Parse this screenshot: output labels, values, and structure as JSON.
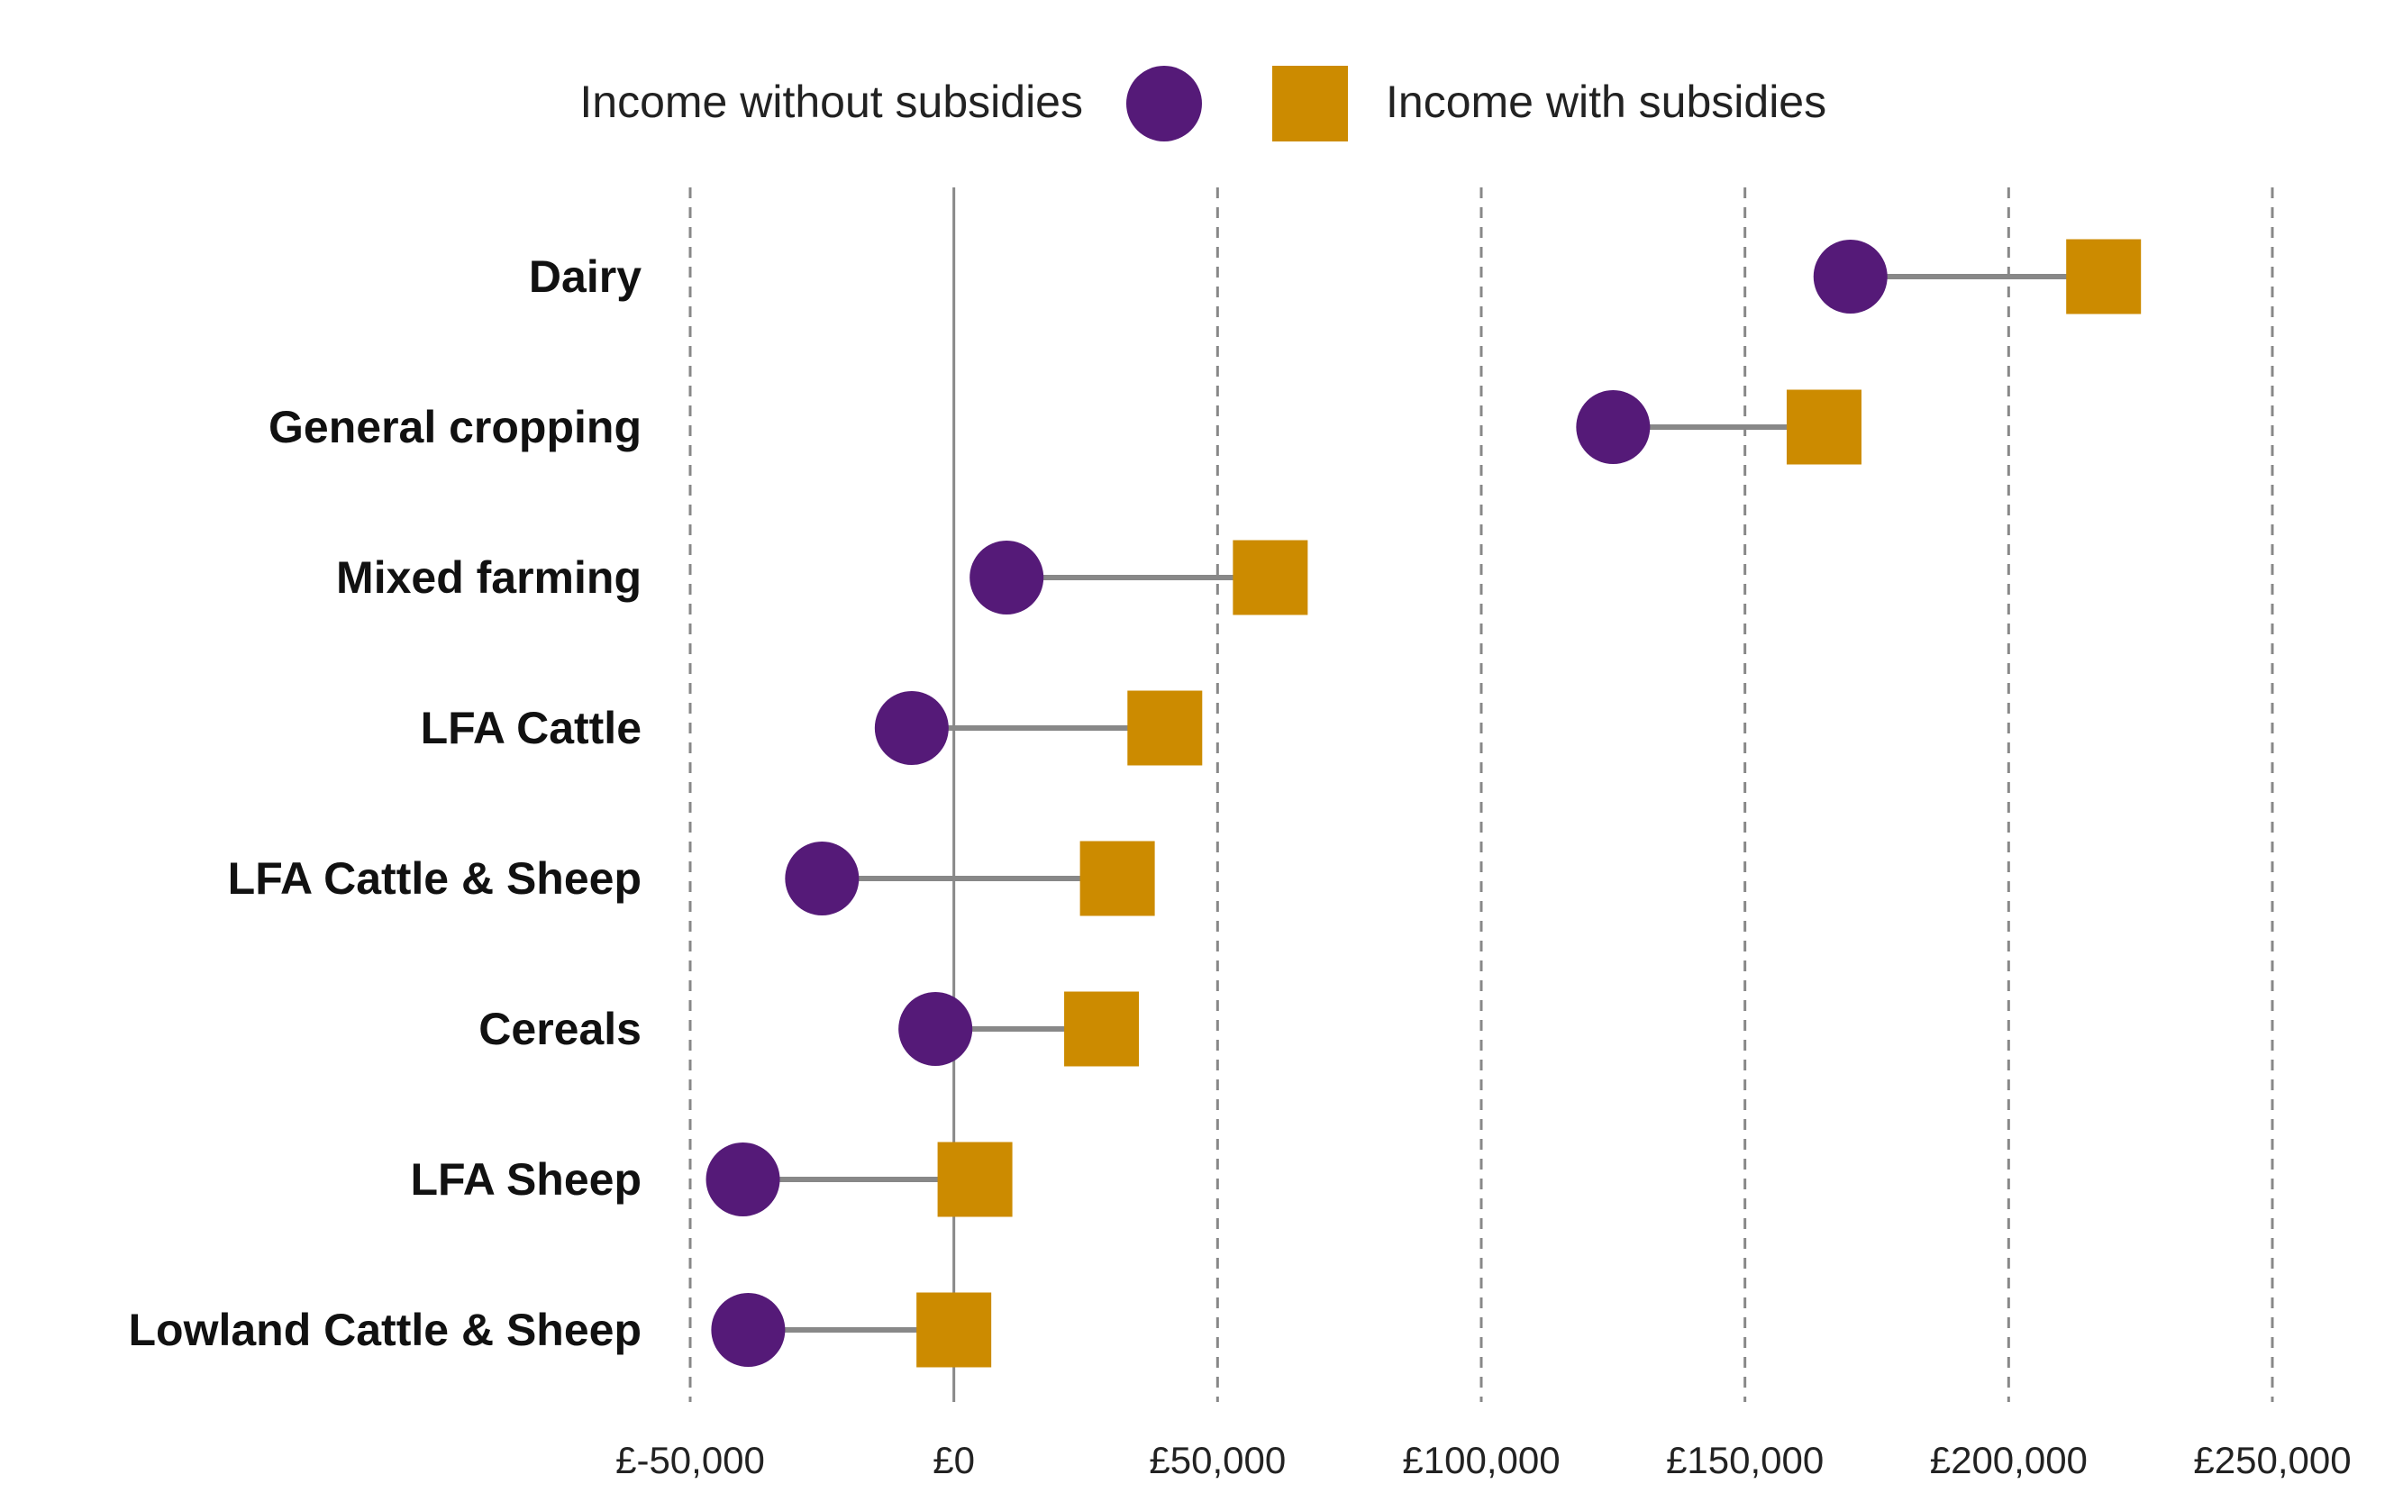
{
  "chart_data": {
    "type": "dumbbell",
    "legend": {
      "position": "top",
      "items": [
        {
          "key": "without",
          "label": "Income without subsidies",
          "marker": "circle",
          "color": "#551A78"
        },
        {
          "key": "with",
          "label": "Income with subsidies",
          "marker": "square",
          "color": "#CC8B00"
        }
      ]
    },
    "x_axis": {
      "min": -50000,
      "max": 250000,
      "ticks": [
        -50000,
        0,
        50000,
        100000,
        150000,
        200000,
        250000
      ],
      "tick_labels": [
        "£-50,000",
        "£0",
        "£50,000",
        "£100,000",
        "£150,000",
        "£200,000",
        "£250,000"
      ],
      "grid": "dashed"
    },
    "categories": [
      "Dairy",
      "General cropping",
      "Mixed farming",
      "LFA Cattle",
      "LFA Cattle & Sheep",
      "Cereals",
      "LFA Sheep",
      "Lowland Cattle & Sheep"
    ],
    "series": [
      {
        "name": "Income without subsidies",
        "values": [
          170000,
          125000,
          10000,
          -8000,
          -25000,
          -3500,
          -40000,
          -39000
        ]
      },
      {
        "name": "Income with subsidies",
        "values": [
          218000,
          165000,
          60000,
          40000,
          31000,
          28000,
          4000,
          0
        ]
      }
    ],
    "colors": {
      "without": "#551A78",
      "with": "#CC8B00",
      "connector": "#888888",
      "grid": "#888888",
      "zero_line": "#888888"
    }
  }
}
